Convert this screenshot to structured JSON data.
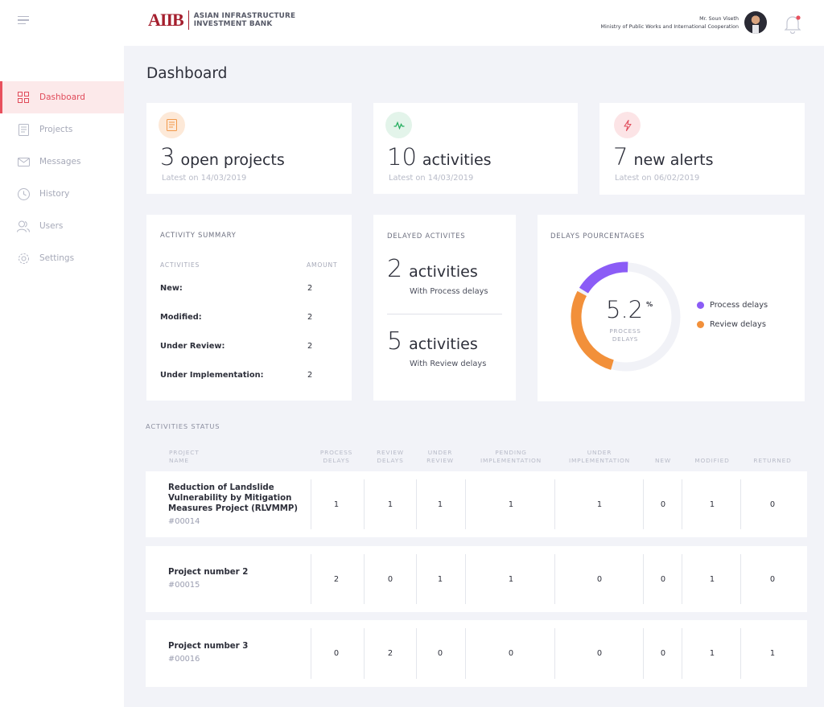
{
  "sidebar": {
    "items": [
      {
        "label": "Dashboard",
        "icon": "grid-icon"
      },
      {
        "label": "Projects",
        "icon": "document-icon"
      },
      {
        "label": "Messages",
        "icon": "envelope-icon"
      },
      {
        "label": "History",
        "icon": "clock-icon"
      },
      {
        "label": "Users",
        "icon": "users-icon"
      },
      {
        "label": "Settings",
        "icon": "gear-icon"
      }
    ]
  },
  "header": {
    "logo_mark": "AIIB",
    "logo_line1": "ASIAN INFRASTRUCTURE",
    "logo_line2": "INVESTMENT BANK",
    "user_name": "Mr. Soun Viseth",
    "user_org": "Ministry of Public Works and International Cooperation"
  },
  "page_title": "Dashboard",
  "stats": [
    {
      "number": "3",
      "label": "open projects",
      "sub": "Latest on 14/03/2019",
      "icon": "document-icon",
      "icon_color": "#f2994a",
      "icon_bg": "#fde9d8"
    },
    {
      "number": "10",
      "label": "activities",
      "sub": "Latest on 14/03/2019",
      "icon": "activity-icon",
      "icon_color": "#27ae60",
      "icon_bg": "#e3f4ea"
    },
    {
      "number": "7",
      "label": "new alerts",
      "sub": "Latest on 06/02/2019",
      "icon": "bolt-icon",
      "icon_color": "#e04b5a",
      "icon_bg": "#fce4e6"
    }
  ],
  "activity_summary": {
    "title": "ACTIVITY SUMMARY",
    "col_activities": "ACTIVITIES",
    "col_amount": "AMOUNT",
    "rows": [
      {
        "label": "New:",
        "value": "2"
      },
      {
        "label": "Modified:",
        "value": "2"
      },
      {
        "label": "Under Review:",
        "value": "2"
      },
      {
        "label": "Under Implementation:",
        "value": "2"
      }
    ]
  },
  "delayed": {
    "title": "DELAYED ACTIVITES",
    "items": [
      {
        "number": "2",
        "label": "activities",
        "sub": "With Process delays"
      },
      {
        "number": "5",
        "label": "activities",
        "sub": "With Review delays"
      }
    ]
  },
  "delays_pct": {
    "title": "DELAYS POURCENTAGES",
    "value": "5.2",
    "unit": "%",
    "caption_line1": "PROCESS",
    "caption_line2": "DELAYS",
    "legend": [
      {
        "label": "Process delays",
        "color": "#8b5cf6"
      },
      {
        "label": "Review delays",
        "color": "#f2903a"
      }
    ]
  },
  "activities_status": {
    "title": "ACTIVITIES STATUS",
    "headers": [
      [
        "PROJECT",
        "NAME"
      ],
      [
        "PROCESS",
        "DELAYS"
      ],
      [
        "REVIEW",
        "DELAYS"
      ],
      [
        "UNDER",
        "REVIEW"
      ],
      [
        "PENDING",
        "IMPLEMENTATION"
      ],
      [
        "UNDER",
        "IMPLEMENTATION"
      ],
      [
        "NEW",
        ""
      ],
      [
        "MODIFIED",
        ""
      ],
      [
        "RETURNED",
        ""
      ]
    ],
    "rows": [
      {
        "name_lines": [
          "Reduction of Landslide",
          "Vulnerability by Mitigation",
          "Measures Project (RLVMMP)"
        ],
        "id": "#00014",
        "values": [
          "1",
          "1",
          "1",
          "1",
          "1",
          "0",
          "1",
          "0"
        ]
      },
      {
        "name_lines": [
          "Project number 2"
        ],
        "id": "#00015",
        "values": [
          "2",
          "0",
          "1",
          "1",
          "0",
          "0",
          "1",
          "0"
        ]
      },
      {
        "name_lines": [
          "Project number 3"
        ],
        "id": "#00016",
        "values": [
          "0",
          "2",
          "0",
          "0",
          "0",
          "0",
          "1",
          "1"
        ]
      }
    ]
  }
}
